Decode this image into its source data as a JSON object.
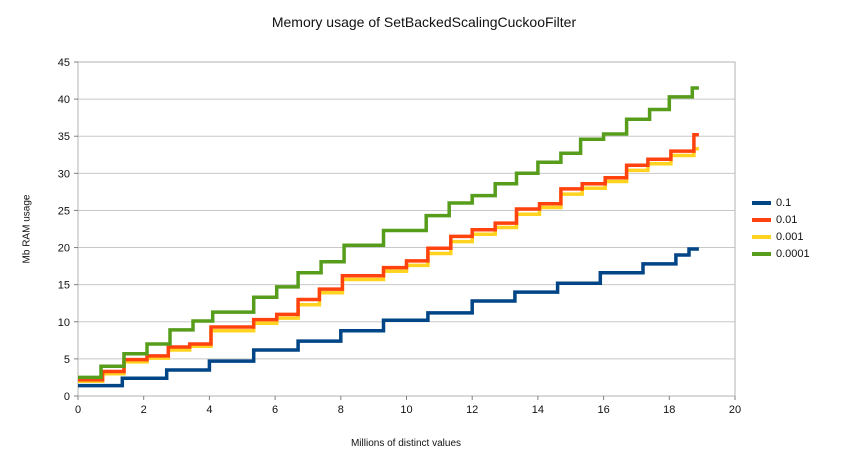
{
  "chart_data": {
    "type": "line",
    "subtype": "step",
    "title": "Memory usage of SetBackedScalingCuckooFilter",
    "xlabel": "Millions of distinct values",
    "ylabel": "Mb RAM usage",
    "xlim": [
      0,
      20
    ],
    "ylim": [
      0,
      45
    ],
    "xticks": [
      0,
      2,
      4,
      6,
      8,
      10,
      12,
      14,
      16,
      18,
      20
    ],
    "yticks": [
      0,
      5,
      10,
      15,
      20,
      25,
      30,
      35,
      40,
      45
    ],
    "grid": "horizontal",
    "legend_position": "right",
    "x_end": 18.9,
    "series": [
      {
        "name": "0.1",
        "color": "#004586",
        "points": [
          [
            0,
            1.4
          ],
          [
            1.35,
            2.4
          ],
          [
            2.7,
            3.5
          ],
          [
            4.0,
            4.7
          ],
          [
            5.35,
            6.2
          ],
          [
            6.7,
            7.4
          ],
          [
            8.0,
            8.8
          ],
          [
            9.3,
            10.2
          ],
          [
            10.65,
            11.2
          ],
          [
            12.0,
            12.8
          ],
          [
            13.3,
            14.0
          ],
          [
            14.6,
            15.2
          ],
          [
            15.9,
            16.6
          ],
          [
            17.2,
            17.8
          ],
          [
            18.2,
            19.0
          ],
          [
            18.6,
            19.8
          ]
        ]
      },
      {
        "name": "0.01",
        "color": "#FF420E",
        "points": [
          [
            0,
            2.2
          ],
          [
            0.75,
            3.3
          ],
          [
            1.4,
            4.9
          ],
          [
            2.1,
            5.4
          ],
          [
            2.75,
            6.6
          ],
          [
            3.4,
            7.0
          ],
          [
            4.05,
            9.3
          ],
          [
            5.35,
            10.3
          ],
          [
            6.05,
            11.0
          ],
          [
            6.7,
            13.0
          ],
          [
            7.35,
            14.4
          ],
          [
            8.05,
            16.2
          ],
          [
            9.3,
            17.3
          ],
          [
            10.0,
            18.2
          ],
          [
            10.65,
            19.9
          ],
          [
            11.35,
            21.5
          ],
          [
            12.0,
            22.4
          ],
          [
            12.7,
            23.3
          ],
          [
            13.35,
            25.2
          ],
          [
            14.05,
            25.9
          ],
          [
            14.7,
            27.9
          ],
          [
            15.35,
            28.6
          ],
          [
            16.05,
            29.4
          ],
          [
            16.7,
            31.1
          ],
          [
            17.35,
            31.9
          ],
          [
            18.05,
            33.0
          ],
          [
            18.75,
            35.2
          ]
        ]
      },
      {
        "name": "0.001",
        "color": "#FFD320",
        "points": [
          [
            0,
            2.0
          ],
          [
            0.75,
            3.0
          ],
          [
            1.4,
            4.6
          ],
          [
            2.1,
            5.1
          ],
          [
            2.75,
            6.2
          ],
          [
            3.4,
            6.7
          ],
          [
            4.05,
            8.8
          ],
          [
            5.35,
            9.8
          ],
          [
            6.05,
            10.5
          ],
          [
            6.7,
            12.3
          ],
          [
            7.35,
            13.9
          ],
          [
            8.05,
            15.7
          ],
          [
            9.3,
            16.8
          ],
          [
            10.0,
            17.6
          ],
          [
            10.65,
            19.2
          ],
          [
            11.35,
            20.8
          ],
          [
            12.0,
            21.8
          ],
          [
            12.7,
            22.7
          ],
          [
            13.35,
            24.5
          ],
          [
            14.05,
            25.4
          ],
          [
            14.7,
            27.2
          ],
          [
            15.35,
            28.0
          ],
          [
            16.05,
            28.9
          ],
          [
            16.7,
            30.4
          ],
          [
            17.35,
            31.3
          ],
          [
            18.05,
            32.4
          ],
          [
            18.75,
            33.3
          ]
        ]
      },
      {
        "name": "0.0001",
        "color": "#579D1C",
        "points": [
          [
            0,
            2.5
          ],
          [
            0.7,
            4.0
          ],
          [
            1.4,
            5.7
          ],
          [
            2.1,
            7.0
          ],
          [
            2.8,
            8.9
          ],
          [
            3.5,
            10.1
          ],
          [
            4.1,
            11.3
          ],
          [
            5.35,
            13.3
          ],
          [
            6.05,
            14.7
          ],
          [
            6.7,
            16.6
          ],
          [
            7.4,
            18.1
          ],
          [
            8.1,
            20.3
          ],
          [
            9.3,
            22.3
          ],
          [
            10.6,
            24.3
          ],
          [
            11.3,
            26.0
          ],
          [
            12.0,
            27.0
          ],
          [
            12.7,
            28.6
          ],
          [
            13.35,
            30.0
          ],
          [
            14.0,
            31.5
          ],
          [
            14.7,
            32.7
          ],
          [
            15.3,
            34.6
          ],
          [
            16.0,
            35.3
          ],
          [
            16.7,
            37.3
          ],
          [
            17.4,
            38.6
          ],
          [
            18.0,
            40.3
          ],
          [
            18.7,
            41.5
          ]
        ]
      }
    ],
    "draw_order": [
      0,
      2,
      1,
      3
    ],
    "styles": {
      "grid_color": "#c8c8c8",
      "border_color": "#b3b3b3",
      "tick_color": "#808080",
      "line_width": 3.5
    }
  }
}
